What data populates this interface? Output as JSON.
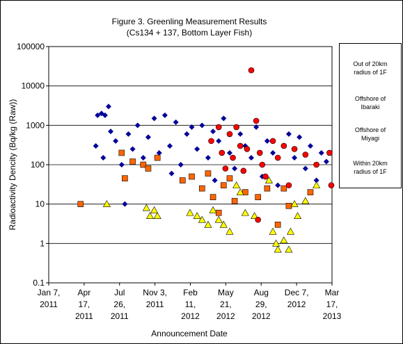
{
  "chart_data": {
    "type": "scatter",
    "title": "Figure 3. Greenling Measurement Results",
    "subtitle": "(Cs134 + 137, Bottom Layer Fish)",
    "x_label": "Announcement Date",
    "y_label": "Radioactivity Dencity (Bq/kg (Raw))",
    "y_log": true,
    "grid": true,
    "legend": "right",
    "ylim": [
      0.1,
      100000
    ],
    "yticks": [
      0.1,
      1,
      10,
      100,
      1000,
      10000,
      100000
    ],
    "xlim": [
      "2011-01-07",
      "2013-03-17"
    ],
    "xticks": [
      {
        "value": "2011-01-07",
        "label": "Jan 7, 2011"
      },
      {
        "value": "2011-04-17",
        "label": "Apr 17, 2011"
      },
      {
        "value": "2011-07-26",
        "label": "Jul 26, 2011"
      },
      {
        "value": "2011-11-03",
        "label": "Nov 3, 2011"
      },
      {
        "value": "2012-02-11",
        "label": "Feb 11, 2012"
      },
      {
        "value": "2012-05-21",
        "label": "May 21, 2012"
      },
      {
        "value": "2012-08-29",
        "label": "Aug 29, 2012"
      },
      {
        "value": "2012-12-07",
        "label": "Dec 7, 2012"
      },
      {
        "value": "2013-03-17",
        "label": "Mar 17, 2013"
      }
    ],
    "series": [
      {
        "name": "Out of 20km radius of 1F",
        "color": "#000099",
        "marker": "diamond",
        "x": [
          "2011-05-20",
          "2011-05-25",
          "2011-06-05",
          "2011-06-15",
          "2011-06-25",
          "2011-06-10",
          "2011-07-01",
          "2011-07-15",
          "2011-08-01",
          "2011-08-10",
          "2011-08-20",
          "2011-09-01",
          "2011-09-15",
          "2011-10-01",
          "2011-10-15",
          "2011-11-01",
          "2011-11-15",
          "2011-12-01",
          "2011-12-15",
          "2012-01-01",
          "2012-01-15",
          "2012-02-01",
          "2012-02-15",
          "2012-03-01",
          "2012-03-15",
          "2012-04-01",
          "2012-04-15",
          "2012-05-01",
          "2012-05-15",
          "2012-06-01",
          "2012-06-15",
          "2012-07-01",
          "2012-07-15",
          "2012-08-01",
          "2012-08-15",
          "2012-09-01",
          "2012-09-15",
          "2012-10-01",
          "2012-10-15",
          "2012-11-01",
          "2012-11-15",
          "2012-12-01",
          "2012-12-15",
          "2013-01-01",
          "2013-01-15",
          "2013-02-01",
          "2013-02-15",
          "2013-03-01",
          "2011-12-20",
          "2012-04-20"
        ],
        "values": [
          300,
          1800,
          2000,
          1800,
          3000,
          150,
          700,
          400,
          100,
          10,
          600,
          250,
          1000,
          150,
          500,
          1500,
          200,
          1800,
          300,
          1200,
          100,
          600,
          900,
          250,
          1000,
          150,
          700,
          400,
          1500,
          200,
          80,
          600,
          300,
          150,
          900,
          50,
          400,
          200,
          30,
          300,
          600,
          150,
          500,
          80,
          300,
          40,
          200,
          120,
          60,
          40
        ]
      },
      {
        "name": "Offshore of Ibaraki",
        "color": "#ff6600",
        "marker": "square",
        "x": [
          "2011-04-07",
          "2011-08-01",
          "2011-08-10",
          "2011-09-01",
          "2011-10-01",
          "2011-10-15",
          "2011-11-10",
          "2012-01-20",
          "2012-02-15",
          "2012-03-15",
          "2012-04-01",
          "2012-04-15",
          "2012-05-01",
          "2012-05-15",
          "2012-06-01",
          "2012-06-15",
          "2012-07-15",
          "2012-08-20",
          "2012-09-15",
          "2012-10-15",
          "2012-11-01",
          "2012-11-15",
          "2013-01-15"
        ],
        "values": [
          10,
          200,
          45,
          120,
          100,
          80,
          150,
          40,
          50,
          25,
          60,
          15,
          6,
          30,
          45,
          12,
          20,
          15,
          25,
          3,
          25,
          9,
          20
        ]
      },
      {
        "name": "Offshore of Miyagi",
        "color": "#ffff00",
        "marker": "triangle",
        "x": [
          "2011-06-20",
          "2011-10-10",
          "2011-10-20",
          "2011-11-01",
          "2011-11-10",
          "2012-02-10",
          "2012-03-01",
          "2012-03-15",
          "2012-04-01",
          "2012-04-15",
          "2012-05-01",
          "2012-05-15",
          "2012-06-01",
          "2012-06-20",
          "2012-07-01",
          "2012-07-15",
          "2012-08-10",
          "2012-09-20",
          "2012-10-01",
          "2012-10-10",
          "2012-10-15",
          "2012-11-01",
          "2012-11-15",
          "2012-11-20",
          "2012-12-01",
          "2012-12-10",
          "2013-01-01",
          "2013-02-01"
        ],
        "values": [
          10,
          8,
          5,
          7,
          5,
          6,
          5,
          4,
          3,
          7,
          4,
          3,
          2,
          30,
          20,
          6,
          5,
          40,
          2,
          1,
          0.7,
          1.2,
          0.7,
          2,
          10,
          5,
          12,
          30
        ]
      },
      {
        "name": "Within 20km radius of 1F",
        "color": "#ff0000",
        "marker": "circle",
        "x": [
          "2012-05-01",
          "2012-05-10",
          "2012-05-20",
          "2012-06-01",
          "2012-06-10",
          "2012-06-20",
          "2012-07-01",
          "2012-07-10",
          "2012-07-20",
          "2012-08-01",
          "2012-08-15",
          "2012-08-20",
          "2012-08-25",
          "2012-09-01",
          "2012-09-10",
          "2012-10-01",
          "2012-10-15",
          "2012-11-01",
          "2012-11-15",
          "2012-12-01",
          "2013-01-01",
          "2013-02-01",
          "2013-03-10",
          "2013-03-15",
          "2012-04-10"
        ],
        "values": [
          900,
          200,
          80,
          600,
          150,
          900,
          300,
          70,
          250,
          25000,
          1300,
          4,
          200,
          100,
          50,
          400,
          150,
          300,
          30,
          250,
          180,
          100,
          200,
          30,
          400
        ]
      }
    ]
  }
}
